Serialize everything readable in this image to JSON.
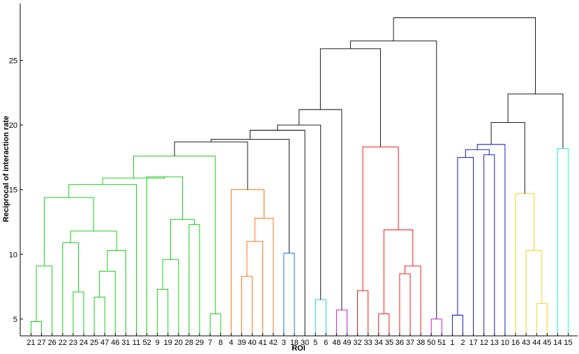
{
  "chart_data": {
    "type": "dendrogram",
    "xlabel": "ROI",
    "ylabel": "Reciprocal of interaction rate",
    "ylim": [
      3.7,
      29.4
    ],
    "yticks": [
      5,
      10,
      15,
      20,
      25
    ],
    "leaves": [
      "21",
      "27",
      "26",
      "22",
      "23",
      "24",
      "25",
      "47",
      "46",
      "31",
      "11",
      "52",
      "9",
      "19",
      "20",
      "28",
      "29",
      "7",
      "8",
      "4",
      "39",
      "40",
      "41",
      "42",
      "3",
      "18",
      "30",
      "5",
      "6",
      "48",
      "49",
      "32",
      "33",
      "34",
      "35",
      "36",
      "37",
      "38",
      "50",
      "51",
      "1",
      "2",
      "17",
      "12",
      "13",
      "10",
      "16",
      "43",
      "44",
      "45",
      "14",
      "15"
    ],
    "merges": [
      {
        "id": "n1",
        "left": "21",
        "right": "27",
        "height": 4.8,
        "color": "#00cc00"
      },
      {
        "id": "n2",
        "left": "25",
        "right": "47",
        "height": 6.7,
        "color": "#00cc00"
      },
      {
        "id": "n3",
        "left": "23",
        "right": "24",
        "height": 7.1,
        "color": "#00cc00"
      },
      {
        "id": "n4",
        "left": "n2",
        "right": "46",
        "height": 8.7,
        "color": "#00cc00"
      },
      {
        "id": "n5",
        "left": "n1",
        "right": "26",
        "height": 9.1,
        "color": "#00cc00"
      },
      {
        "id": "n6",
        "left": "n4",
        "right": "31",
        "height": 10.3,
        "color": "#00cc00"
      },
      {
        "id": "n7",
        "left": "22",
        "right": "n3",
        "height": 10.9,
        "color": "#00cc00"
      },
      {
        "id": "n8",
        "left": "n7",
        "right": "n6",
        "height": 11.8,
        "color": "#00cc00"
      },
      {
        "id": "n9",
        "left": "n5",
        "right": "n8",
        "height": 14.4,
        "color": "#00cc00"
      },
      {
        "id": "n10",
        "left": "n9",
        "right": "11",
        "height": 15.4,
        "color": "#00cc00"
      },
      {
        "id": "n11",
        "left": "9",
        "right": "19",
        "height": 7.3,
        "color": "#00cc00"
      },
      {
        "id": "n12",
        "left": "n11",
        "right": "20",
        "height": 9.6,
        "color": "#00cc00"
      },
      {
        "id": "n13",
        "left": "28",
        "right": "29",
        "height": 12.3,
        "color": "#00cc00"
      },
      {
        "id": "n14",
        "left": "n12",
        "right": "n13",
        "height": 12.7,
        "color": "#00cc00"
      },
      {
        "id": "n15",
        "left": "52",
        "right": "n14",
        "height": 16.0,
        "color": "#00cc00"
      },
      {
        "id": "n16",
        "left": "n10",
        "right": "n15",
        "height": 15.9,
        "color": "#00cc00"
      },
      {
        "id": "n17",
        "left": "7",
        "right": "8",
        "height": 5.4,
        "color": "#00cc00"
      },
      {
        "id": "n18",
        "left": "n16",
        "right": "n17",
        "height": 17.6,
        "color": "#00cc00"
      },
      {
        "id": "n19",
        "left": "39",
        "right": "40",
        "height": 8.3,
        "color": "#ff6600"
      },
      {
        "id": "n20",
        "left": "n19",
        "right": "41",
        "height": 11.0,
        "color": "#ff6600"
      },
      {
        "id": "n21",
        "left": "n20",
        "right": "42",
        "height": 12.8,
        "color": "#ff6600"
      },
      {
        "id": "n22",
        "left": "4",
        "right": "n21",
        "height": 15.0,
        "color": "#ff6600"
      },
      {
        "id": "n23",
        "left": "n18",
        "right": "n22",
        "height": 18.7,
        "color": "#000000"
      },
      {
        "id": "n24",
        "left": "3",
        "right": "18",
        "height": 10.1,
        "color": "#0066ff"
      },
      {
        "id": "n25",
        "left": "n23",
        "right": "n24",
        "height": 18.9,
        "color": "#000000"
      },
      {
        "id": "n26",
        "left": "n25",
        "right": "30",
        "height": 19.6,
        "color": "#000000"
      },
      {
        "id": "n27",
        "left": "5",
        "right": "6",
        "height": 6.5,
        "color": "#00cccc"
      },
      {
        "id": "n28",
        "left": "n26",
        "right": "n27",
        "height": 20.0,
        "color": "#000000"
      },
      {
        "id": "n29",
        "left": "48",
        "right": "49",
        "height": 5.7,
        "color": "#cc00cc"
      },
      {
        "id": "n30",
        "left": "n28",
        "right": "n29",
        "height": 21.2,
        "color": "#000000"
      },
      {
        "id": "n31",
        "left": "32",
        "right": "33",
        "height": 7.2,
        "color": "#ff0000"
      },
      {
        "id": "n32",
        "left": "34",
        "right": "35",
        "height": 5.4,
        "color": "#ff0000"
      },
      {
        "id": "n33",
        "left": "36",
        "right": "37",
        "height": 8.5,
        "color": "#ff0000"
      },
      {
        "id": "n34",
        "left": "n33",
        "right": "38",
        "height": 9.1,
        "color": "#ff0000"
      },
      {
        "id": "n35",
        "left": "n32",
        "right": "n34",
        "height": 11.9,
        "color": "#ff0000"
      },
      {
        "id": "n36",
        "left": "n31",
        "right": "n35",
        "height": 18.3,
        "color": "#ff0000"
      },
      {
        "id": "n37",
        "left": "n30",
        "right": "n36",
        "height": 25.9,
        "color": "#000000"
      },
      {
        "id": "n38",
        "left": "50",
        "right": "51",
        "height": 5.0,
        "color": "#cc00cc"
      },
      {
        "id": "n39",
        "left": "n37",
        "right": "n38",
        "height": 26.5,
        "color": "#000000"
      },
      {
        "id": "n40",
        "left": "1",
        "right": "2",
        "height": 5.3,
        "color": "#0000cc"
      },
      {
        "id": "n41",
        "left": "n40",
        "right": "17",
        "height": 17.5,
        "color": "#0000cc"
      },
      {
        "id": "n42",
        "left": "12",
        "right": "13",
        "height": 17.7,
        "color": "#0000cc"
      },
      {
        "id": "n43",
        "left": "n41",
        "right": "n42",
        "height": 18.1,
        "color": "#0000cc"
      },
      {
        "id": "n44",
        "left": "n43",
        "right": "10",
        "height": 18.5,
        "color": "#0000cc"
      },
      {
        "id": "n45",
        "left": "44",
        "right": "45",
        "height": 6.2,
        "color": "#ffcc00"
      },
      {
        "id": "n46",
        "left": "43",
        "right": "n45",
        "height": 10.3,
        "color": "#ffcc00"
      },
      {
        "id": "n47",
        "left": "16",
        "right": "n46",
        "height": 14.7,
        "color": "#ffcc00"
      },
      {
        "id": "n48",
        "left": "n44",
        "right": "n47",
        "height": 20.2,
        "color": "#000000"
      },
      {
        "id": "n49",
        "left": "14",
        "right": "15",
        "height": 18.2,
        "color": "#00ffcc"
      },
      {
        "id": "n50",
        "left": "n48",
        "right": "n49",
        "height": 22.4,
        "color": "#000000"
      },
      {
        "id": "n51",
        "left": "n39",
        "right": "n50",
        "height": 28.3,
        "color": "#000000"
      }
    ]
  }
}
